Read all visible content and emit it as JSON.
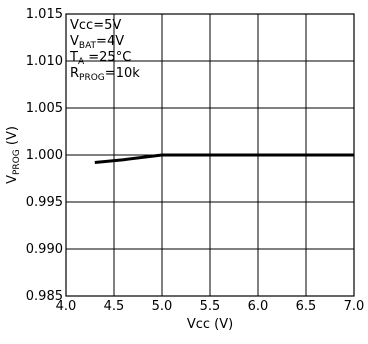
{
  "chart_data": {
    "type": "line",
    "xlabel_main": "Vcc",
    "xlabel_unit": "(V)",
    "ylabel_main": "V",
    "ylabel_sub": "PROG",
    "ylabel_unit": "(V)",
    "xlim": [
      4.0,
      7.0
    ],
    "ylim": [
      0.985,
      1.015
    ],
    "x_ticks": [
      "4.0",
      "4.5",
      "5.0",
      "5.5",
      "6.0",
      "6.5",
      "7.0"
    ],
    "y_ticks": [
      "1.015",
      "1.010",
      "1.005",
      "1.000",
      "0.995",
      "0.990",
      "0.985"
    ],
    "grid": true,
    "annotations": [
      {
        "main": "Vcc=5V",
        "sub": "",
        "rest": ""
      },
      {
        "main": "V",
        "sub": "BAT",
        "rest": "=4V"
      },
      {
        "main": "T",
        "sub": "A",
        "rest": " =25°C"
      },
      {
        "main": "R",
        "sub": "PROG",
        "rest": "=10k"
      }
    ],
    "series": [
      {
        "x": [
          4.3,
          4.6,
          5.0,
          5.5,
          6.0,
          6.5,
          7.0
        ],
        "y": [
          0.9992,
          0.9995,
          1.0,
          1.0,
          1.0,
          1.0,
          1.0
        ]
      }
    ]
  }
}
